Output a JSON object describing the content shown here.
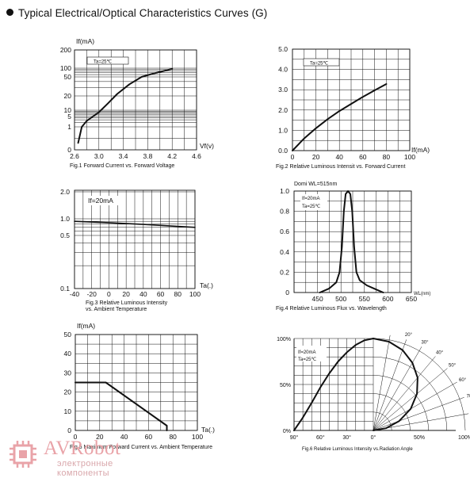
{
  "heading": "Typical Electrical/Optical Characteristics Curves (G)",
  "watermark": {
    "brand": "AVRobot",
    "tagline": "электронные компоненты"
  },
  "chart_data": [
    {
      "id": "fig1",
      "type": "line",
      "y_scale": "log",
      "ylabel": "If(mA)",
      "xlabel": "Vf(v)",
      "xlim": [
        2.6,
        4.6
      ],
      "ylim": [
        0,
        200
      ],
      "x_ticks": [
        "2.6",
        "3.0",
        "3.4",
        "3.8",
        "4.2",
        "4.6"
      ],
      "y_ticks": [
        "0",
        "1",
        "5",
        "10",
        "20",
        "50",
        "100",
        "200"
      ],
      "annotation": "Ta=25℃",
      "caption": "Fig.1 Forward Current vs. Forward Voltage",
      "series": [
        {
          "x": [
            2.66,
            2.72,
            2.8,
            2.9,
            3.0,
            3.15,
            3.3,
            3.5,
            3.7,
            3.9,
            4.1,
            4.2
          ],
          "y": [
            0.3,
            1,
            2.5,
            5,
            8,
            14,
            22,
            35,
            50,
            66,
            84,
            95
          ]
        }
      ]
    },
    {
      "id": "fig2",
      "type": "line",
      "xlabel": "If(mA)",
      "xlim": [
        0,
        100
      ],
      "ylim": [
        0,
        5.0
      ],
      "x_ticks": [
        "0",
        "20",
        "40",
        "60",
        "80",
        "100"
      ],
      "y_ticks": [
        "0.0",
        "1.0",
        "2.0",
        "3.0",
        "4.0",
        "5.0"
      ],
      "annotation": "Ta=25℃",
      "caption": "Fig.2 Relative Luminous Intensit  vs. Forward Current",
      "series": [
        {
          "x": [
            0,
            5,
            10,
            20,
            30,
            40,
            50,
            60,
            70,
            80
          ],
          "y": [
            0.0,
            0.3,
            0.6,
            1.1,
            1.55,
            1.95,
            2.3,
            2.65,
            2.97,
            3.28
          ]
        }
      ]
    },
    {
      "id": "fig3",
      "type": "line",
      "y_scale": "log",
      "xlabel": "Ta(.)",
      "xlim": [
        -40,
        100
      ],
      "ylim": [
        0.1,
        2.0
      ],
      "x_ticks": [
        "-40",
        "-20",
        "0",
        "20",
        "40",
        "60",
        "80",
        "100"
      ],
      "y_ticks": [
        "0.1",
        "0.5",
        "1.0",
        "2.0"
      ],
      "annotation": "If=20mA",
      "caption": [
        "Fig.3 Relative Luminous Intensity",
        "vs. Ambient Temperature"
      ],
      "series": [
        {
          "x": [
            -40,
            0,
            40,
            100
          ],
          "y": [
            0.9,
            0.85,
            0.79,
            0.7
          ]
        }
      ]
    },
    {
      "id": "fig4",
      "type": "line",
      "title": "Domi  WL=515nm",
      "xlabel": "WL(nm)",
      "xlim": [
        400,
        650
      ],
      "ylim": [
        0,
        1.0
      ],
      "x_ticks": [
        "450",
        "500",
        "550",
        "600",
        "650"
      ],
      "y_ticks": [
        "0",
        "0.2",
        "0.4",
        "0.6",
        "0.8",
        "1.0"
      ],
      "annotation": [
        "If=20mA",
        "Ta=25℃"
      ],
      "caption": "Fig.4 Relative Luminous Flux  vs. Wavelength",
      "series": [
        {
          "x": [
            455,
            475,
            490,
            497,
            502,
            506,
            510,
            515,
            520,
            524,
            528,
            533,
            540,
            555,
            575,
            590
          ],
          "y": [
            0.0,
            0.04,
            0.1,
            0.2,
            0.45,
            0.8,
            0.97,
            1.0,
            0.97,
            0.8,
            0.45,
            0.2,
            0.12,
            0.07,
            0.03,
            0.0
          ]
        }
      ]
    },
    {
      "id": "fig5",
      "type": "line",
      "ylabel": "If(mA)",
      "xlabel": "Ta(.)",
      "xlim": [
        0,
        100
      ],
      "ylim": [
        0,
        50
      ],
      "x_ticks": [
        "0",
        "20",
        "40",
        "60",
        "80",
        "100"
      ],
      "y_ticks": [
        "0",
        "10",
        "20",
        "30",
        "40",
        "50"
      ],
      "caption": "Fig.5 Maximum Forward Current vs. Ambient Temperature",
      "series": [
        {
          "x": [
            0,
            25,
            75,
            75
          ],
          "y": [
            25,
            25,
            2.5,
            0
          ]
        }
      ]
    },
    {
      "id": "fig6",
      "type": "line",
      "y_ticks": [
        "0%",
        "50%",
        "100%"
      ],
      "x_ticks": [
        "90°",
        "60°",
        "30°",
        "0°",
        "50%",
        "100%"
      ],
      "angle_labels": [
        "20°",
        "30°",
        "40°",
        "50°",
        "60°",
        "70°",
        "80°",
        "90°"
      ],
      "annotation": [
        "If=20mA",
        "Ta=25℃"
      ],
      "caption": "Fig.6 Relative Luminous Intensity vs.Radiation Angle",
      "series": [
        {
          "angle_deg": [
            0,
            10,
            20,
            30,
            40,
            50,
            60,
            70,
            80,
            90
          ],
          "relative_intensity": [
            1.0,
            0.98,
            0.93,
            0.85,
            0.75,
            0.62,
            0.47,
            0.3,
            0.14,
            0.0
          ]
        }
      ]
    }
  ]
}
